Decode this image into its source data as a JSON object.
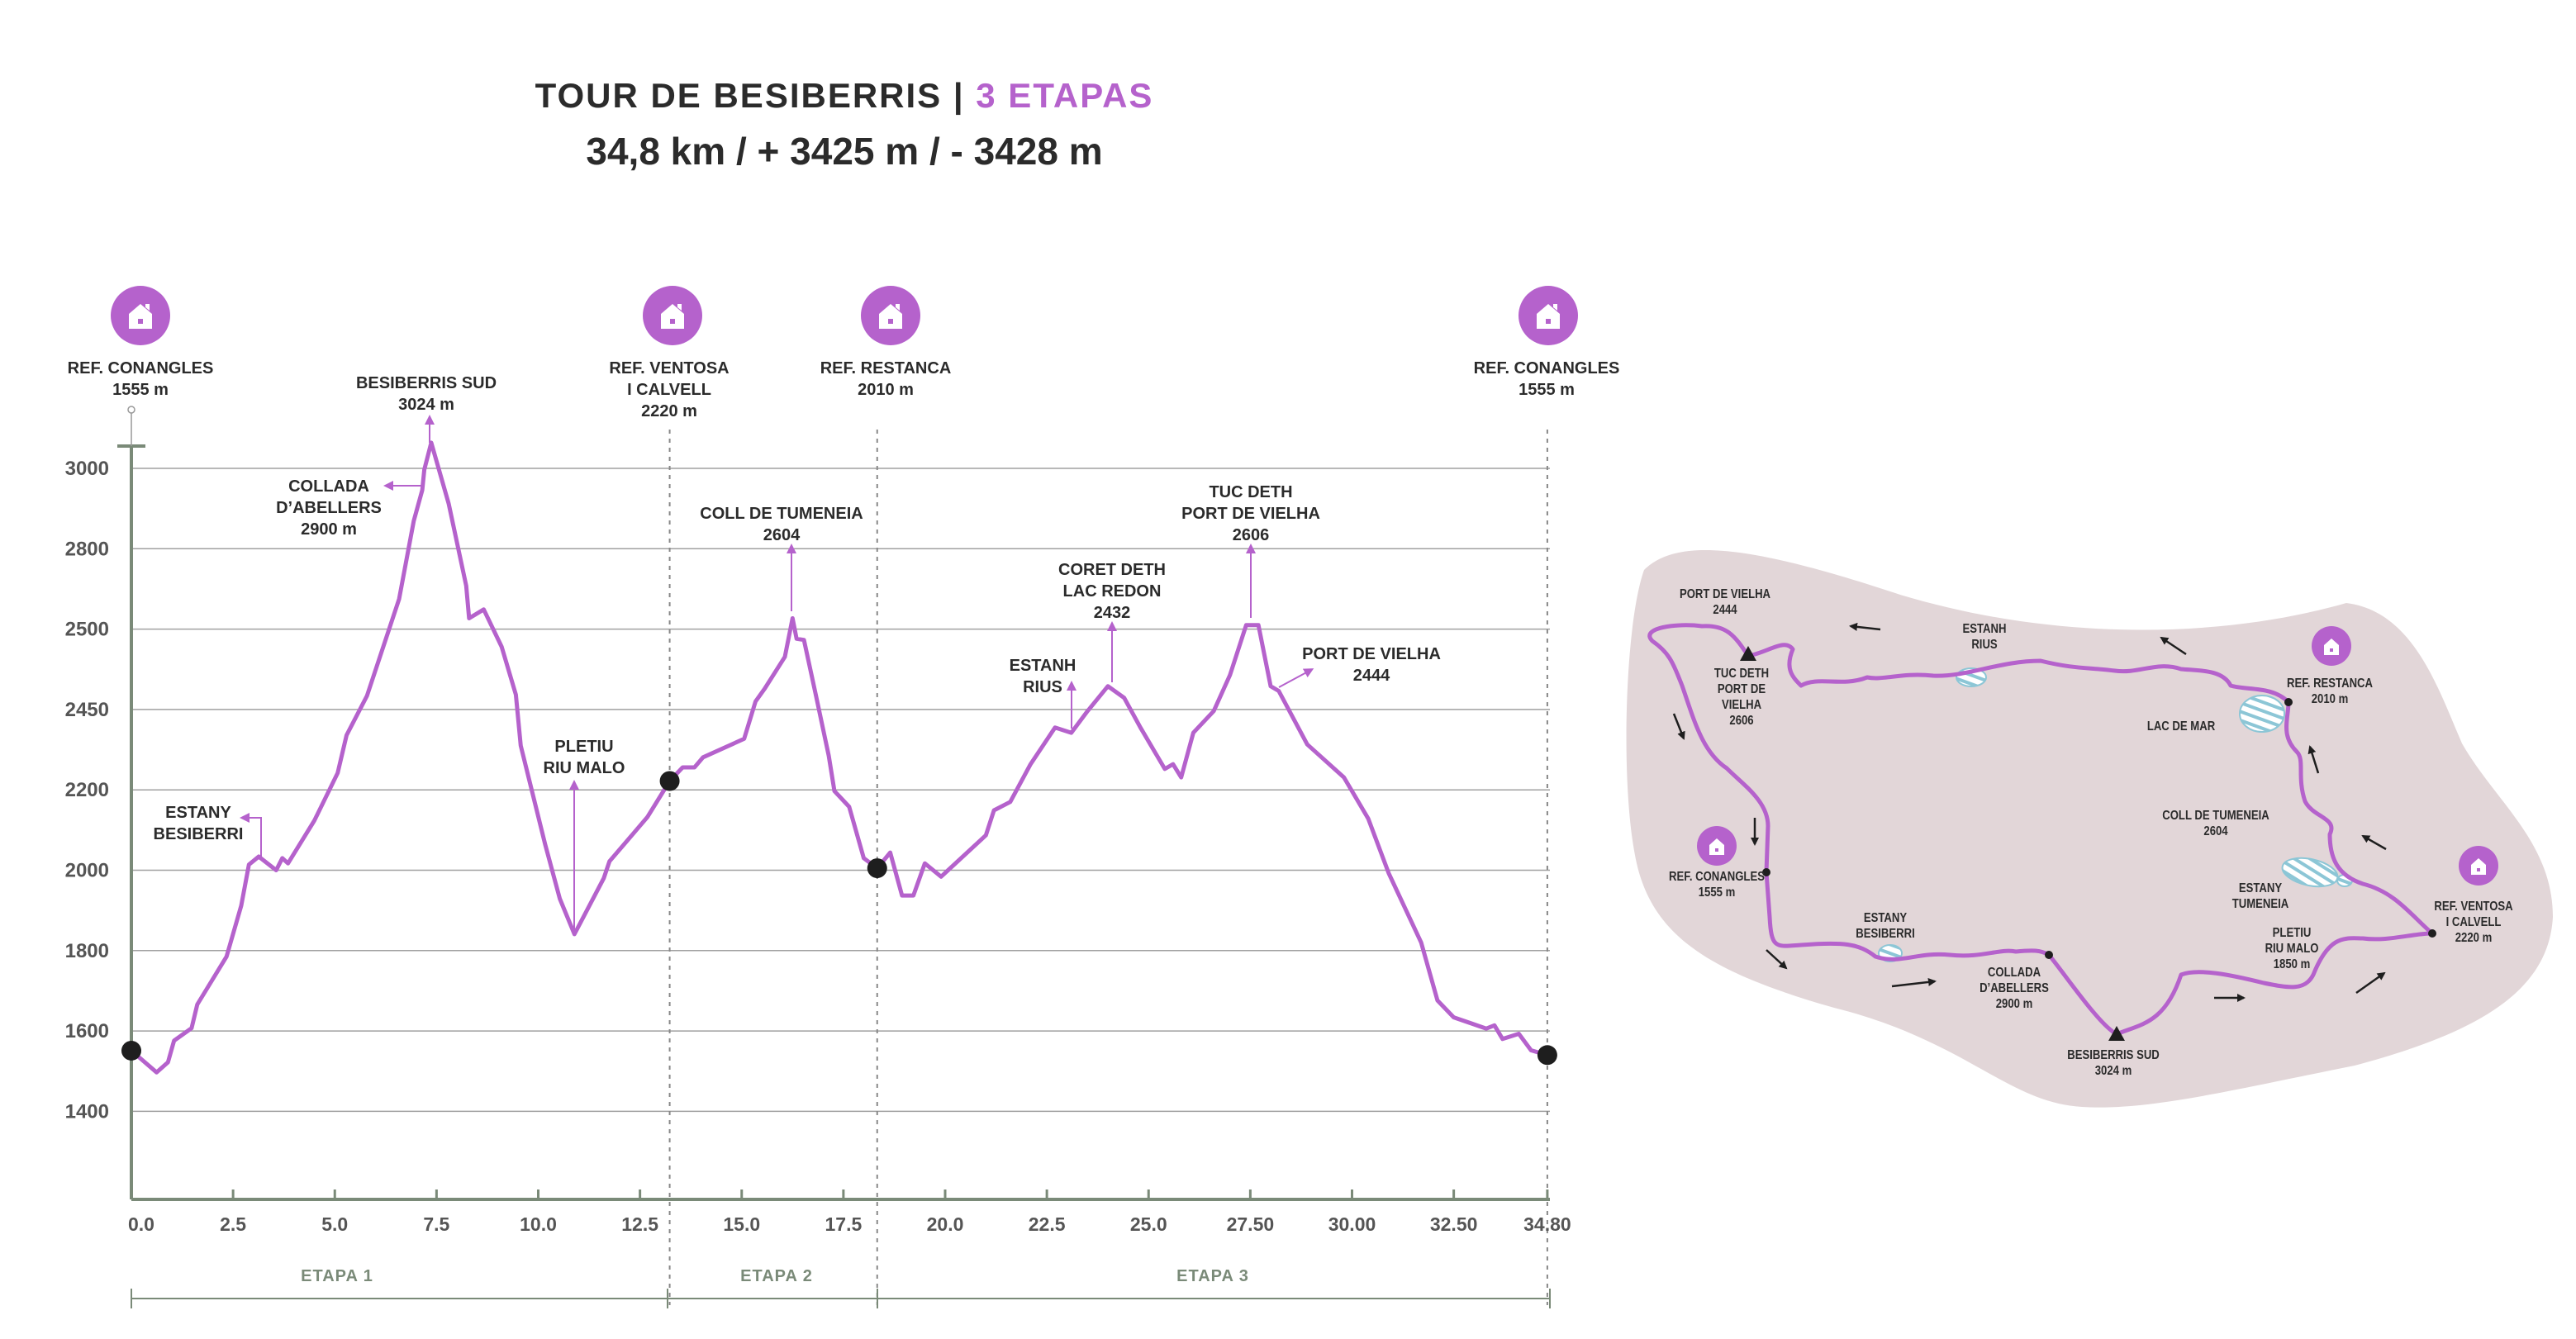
{
  "header": {
    "title_main": "TOUR DE BESIBERRIS |",
    "title_accent": "3 ETAPAS",
    "subtitle": "34,8 km / + 3425 m / - 3428 m"
  },
  "colors": {
    "route": "#b562cc",
    "axis": "#7a8a78",
    "grid": "#a0a0a0",
    "map_bg": "#e2d6d8",
    "lake": "#8cc6d6",
    "dot": "#1e1e1e"
  },
  "chart_data": {
    "type": "line",
    "title": "TOUR DE BESIBERRIS | 3 ETAPAS",
    "xlabel": "",
    "ylabel": "",
    "xlim": [
      0,
      34.8
    ],
    "grid": true,
    "yticks": [
      "3000",
      "2800",
      "2500",
      "2450",
      "2200",
      "2000",
      "1800",
      "1600",
      "1400"
    ],
    "ytick_note": "labels printed as shown, evenly spaced; profile elevations read on a uniform 200 m grid",
    "xticks": [
      {
        "value": 0,
        "label": "0.0"
      },
      {
        "value": 2.5,
        "label": "2.5"
      },
      {
        "value": 5,
        "label": "5.0"
      },
      {
        "value": 7.5,
        "label": "7.5"
      },
      {
        "value": 10,
        "label": "10.0"
      },
      {
        "value": 12.5,
        "label": "12.5"
      },
      {
        "value": 15,
        "label": "15.0"
      },
      {
        "value": 17.5,
        "label": "17.5"
      },
      {
        "value": 20,
        "label": "20.0"
      },
      {
        "value": 22.5,
        "label": "22.5"
      },
      {
        "value": 25,
        "label": "25.0"
      },
      {
        "value": 27.5,
        "label": "27.50"
      },
      {
        "value": 30,
        "label": "30.00"
      },
      {
        "value": 32.5,
        "label": "32.50"
      },
      {
        "value": 34.8,
        "label": "34.80"
      }
    ],
    "series": [
      {
        "name": "Elevation profile",
        "points": [
          [
            0,
            1551
          ],
          [
            0.62,
            1497
          ],
          [
            0.9,
            1522
          ],
          [
            1.05,
            1576
          ],
          [
            1.48,
            1607
          ],
          [
            1.62,
            1666
          ],
          [
            2.34,
            1785
          ],
          [
            2.7,
            1912
          ],
          [
            2.89,
            2014
          ],
          [
            3.13,
            2034
          ],
          [
            3.56,
            2000
          ],
          [
            3.71,
            2030
          ],
          [
            3.85,
            2017
          ],
          [
            4.5,
            2124
          ],
          [
            5.07,
            2242
          ],
          [
            5.29,
            2336
          ],
          [
            5.79,
            2434
          ],
          [
            6.58,
            2675
          ],
          [
            6.94,
            2869
          ],
          [
            7.15,
            2946
          ],
          [
            7.2,
            2997
          ],
          [
            7.37,
            3064
          ],
          [
            7.8,
            2912
          ],
          [
            8.23,
            2708
          ],
          [
            8.3,
            2627
          ],
          [
            8.66,
            2649
          ],
          [
            9.1,
            2556
          ],
          [
            9.45,
            2437
          ],
          [
            9.57,
            2310
          ],
          [
            10.17,
            2064
          ],
          [
            10.53,
            1929
          ],
          [
            10.89,
            1841
          ],
          [
            11.61,
            1980
          ],
          [
            11.75,
            2022
          ],
          [
            12.68,
            2132
          ],
          [
            13.23,
            2222
          ],
          [
            13.55,
            2256
          ],
          [
            13.84,
            2256
          ],
          [
            14.05,
            2281
          ],
          [
            15.06,
            2327
          ],
          [
            15.34,
            2420
          ],
          [
            15.56,
            2451
          ],
          [
            16.06,
            2531
          ],
          [
            16.25,
            2627
          ],
          [
            16.35,
            2576
          ],
          [
            16.53,
            2573
          ],
          [
            16.82,
            2437
          ],
          [
            17.14,
            2285
          ],
          [
            17.28,
            2197
          ],
          [
            17.64,
            2158
          ],
          [
            18.0,
            2030
          ],
          [
            18.33,
            2005
          ],
          [
            18.65,
            2044
          ],
          [
            18.94,
            1937
          ],
          [
            19.22,
            1937
          ],
          [
            19.5,
            2017
          ],
          [
            19.9,
            1984
          ],
          [
            21.0,
            2087
          ],
          [
            21.2,
            2149
          ],
          [
            21.6,
            2170
          ],
          [
            22.1,
            2264
          ],
          [
            22.7,
            2355
          ],
          [
            23.1,
            2342
          ],
          [
            23.5,
            2396
          ],
          [
            24.0,
            2458
          ],
          [
            24.4,
            2429
          ],
          [
            24.8,
            2355
          ],
          [
            25.4,
            2252
          ],
          [
            25.6,
            2264
          ],
          [
            25.8,
            2231
          ],
          [
            26.1,
            2342
          ],
          [
            26.6,
            2396
          ],
          [
            27.0,
            2486
          ],
          [
            27.4,
            2610
          ],
          [
            27.7,
            2610
          ],
          [
            28.0,
            2458
          ],
          [
            28.2,
            2446
          ],
          [
            28.9,
            2313
          ],
          [
            29.8,
            2231
          ],
          [
            30.4,
            2128
          ],
          [
            30.9,
            1993
          ],
          [
            31.7,
            1820
          ],
          [
            32.1,
            1676
          ],
          [
            32.5,
            1634
          ],
          [
            33.3,
            1606
          ],
          [
            33.5,
            1614
          ],
          [
            33.7,
            1580
          ],
          [
            34.1,
            1593
          ],
          [
            34.4,
            1552
          ],
          [
            34.8,
            1540
          ]
        ]
      }
    ],
    "stops": [
      [
        0,
        1551
      ],
      [
        13.23,
        2222
      ],
      [
        18.33,
        2005
      ],
      [
        34.8,
        1540
      ]
    ],
    "stage_dividers": [
      13.23,
      18.33,
      34.8
    ],
    "refuges": [
      {
        "name": "REF. CONANGLES",
        "alt": "1555 m"
      },
      {
        "name": "REF. VENTOSA",
        "name2": "I CALVELL",
        "alt": "2220 m"
      },
      {
        "name": "REF. RESTANCA",
        "alt": "2010 m"
      },
      {
        "name": "REF. CONANGLES",
        "alt": "1555 m"
      }
    ],
    "annotations": {
      "besiberris_sud": [
        "BESIBERRIS SUD",
        "3024 m"
      ],
      "collada": [
        "COLLADA",
        "D’ABELLERS",
        "2900 m"
      ],
      "estany_besiberri": [
        "ESTANY",
        "BESIBERRI"
      ],
      "pletiu": [
        "PLETIU",
        "RIU MALO"
      ],
      "coll_tumeneia": [
        "COLL DE TUMENEIA",
        "2604"
      ],
      "coret": [
        "CORET DETH",
        "LAC REDON",
        "2432"
      ],
      "estanh_rius": [
        "ESTANH",
        "RIUS"
      ],
      "tuc": [
        "TUC DETH",
        "PORT DE VIELHA",
        "2606"
      ],
      "port_vielha": [
        "PORT DE VIELHA",
        "2444"
      ]
    },
    "stages": [
      "ETAPA 1",
      "ETAPA 2",
      "ETAPA 3"
    ]
  },
  "map": {
    "labels": {
      "port_vielha": [
        "PORT DE VIELHA",
        "2444"
      ],
      "tuc": [
        "TUC DETH",
        "PORT DE",
        "VIELHA",
        "2606"
      ],
      "estanh_rius": [
        "ESTANH",
        "RIUS"
      ],
      "restanca": [
        "REF. RESTANCA",
        "2010 m"
      ],
      "lac_mar": [
        "LAC DE MAR"
      ],
      "coll_tumeneia": [
        "COLL DE TUMENEIA",
        "2604"
      ],
      "estany_tumeneia": [
        "ESTANY",
        "TUMENEIA"
      ],
      "ventosa": [
        "REF. VENTOSA",
        "I CALVELL",
        "2220 m"
      ],
      "pletiu": [
        "PLETIU",
        "RIU MALO",
        "1850 m"
      ],
      "conangles": [
        "REF. CONANGLES",
        "1555 m"
      ],
      "estany_besiberri": [
        "ESTANY",
        "BESIBERRI"
      ],
      "collada": [
        "COLLADA",
        "D’ABELLERS",
        "2900 m"
      ],
      "besiberris_sud": [
        "BESIBERRIS SUD",
        "3024 m"
      ]
    }
  }
}
